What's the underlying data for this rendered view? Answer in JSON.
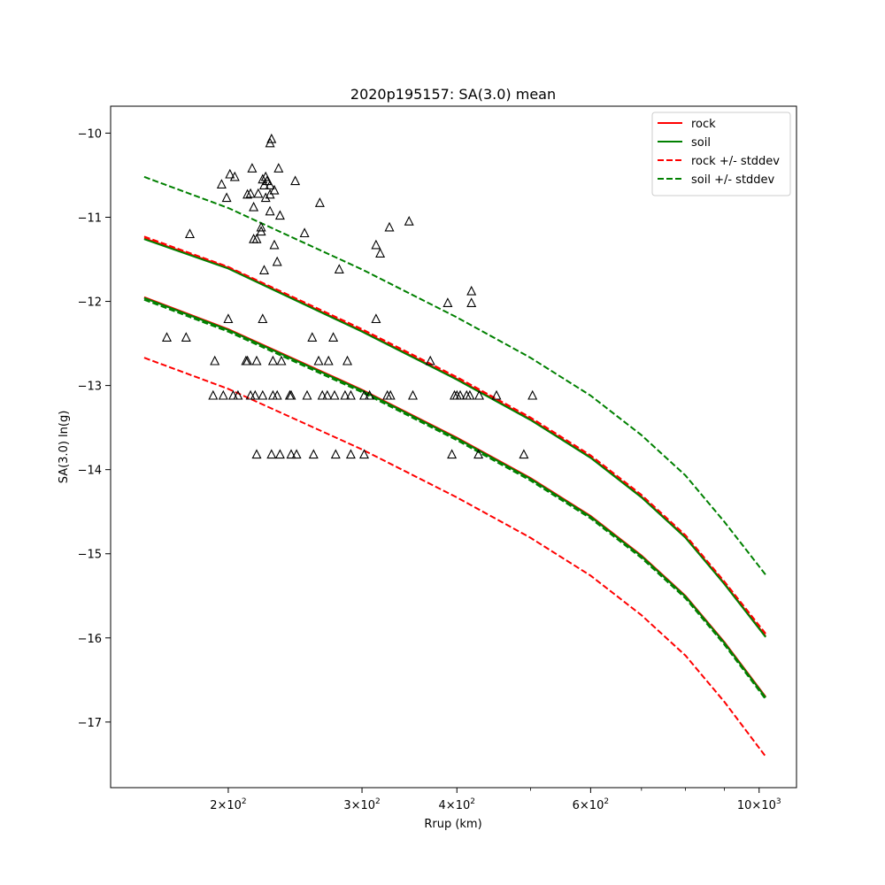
{
  "chart_data": {
    "type": "line",
    "title": "2020p195157: SA(3.0) mean",
    "xlabel": "Rrup (km)",
    "ylabel": "SA(3.0) ln(g)",
    "xscale": "log",
    "xlim": [
      140,
      1120
    ],
    "ylim": [
      -17.78,
      -9.68
    ],
    "grid": false,
    "legend_position": "top-right",
    "x_ticks": [
      {
        "value": 200,
        "base": "2",
        "exp": "2"
      },
      {
        "value": 300,
        "base": "3",
        "exp": "2"
      },
      {
        "value": 400,
        "base": "4",
        "exp": "2"
      },
      {
        "value": 600,
        "base": "6",
        "exp": "2"
      },
      {
        "value": 1000,
        "base": "10",
        "exp": "3"
      }
    ],
    "x_minor_ticks": [
      500,
      700,
      800,
      900
    ],
    "y_ticks": [
      {
        "value": -10,
        "label": "−10"
      },
      {
        "value": -11,
        "label": "−11"
      },
      {
        "value": -12,
        "label": "−12"
      },
      {
        "value": -13,
        "label": "−13"
      },
      {
        "value": -14,
        "label": "−14"
      },
      {
        "value": -15,
        "label": "−15"
      },
      {
        "value": -16,
        "label": "−16"
      },
      {
        "value": -17,
        "label": "−17"
      }
    ],
    "series": [
      {
        "name": "rock",
        "color": "#ff0000",
        "dash": "solid",
        "in_legend": true,
        "x": [
          155,
          200,
          300,
          400,
          500,
          600,
          700,
          800,
          900,
          1020
        ],
        "y": [
          -11.95,
          -12.33,
          -13.05,
          -13.62,
          -14.1,
          -14.55,
          -15.02,
          -15.5,
          -16.05,
          -16.7
        ]
      },
      {
        "name": "",
        "color": "#ff0000",
        "dash": "solid",
        "in_legend": false,
        "x": [
          155,
          200,
          300,
          400,
          500,
          600,
          700,
          800,
          900,
          1020
        ],
        "y": [
          -11.25,
          -11.6,
          -12.35,
          -12.92,
          -13.4,
          -13.85,
          -14.32,
          -14.8,
          -15.35,
          -15.98
        ]
      },
      {
        "name": "soil",
        "color": "#008000",
        "dash": "solid",
        "in_legend": true,
        "x": [
          155,
          200,
          300,
          400,
          500,
          600,
          700,
          800,
          900,
          1020
        ],
        "y": [
          -11.26,
          -11.61,
          -12.36,
          -12.93,
          -13.41,
          -13.86,
          -14.33,
          -14.81,
          -15.36,
          -15.99
        ]
      },
      {
        "name": "",
        "color": "#008000",
        "dash": "solid",
        "in_legend": false,
        "x": [
          155,
          200,
          300,
          400,
          500,
          600,
          700,
          800,
          900,
          1020
        ],
        "y": [
          -11.96,
          -12.34,
          -13.06,
          -13.63,
          -14.11,
          -14.56,
          -15.03,
          -15.51,
          -16.06,
          -16.71
        ]
      },
      {
        "name": "rock +/- stddev",
        "color": "#ff0000",
        "dash": "dashed",
        "in_legend": true,
        "x": [
          155,
          200,
          300,
          400,
          500,
          600,
          700,
          800,
          900,
          1020
        ],
        "y": [
          -12.67,
          -13.04,
          -13.76,
          -14.33,
          -14.81,
          -15.26,
          -15.73,
          -16.21,
          -16.76,
          -17.41
        ]
      },
      {
        "name": "",
        "color": "#ff0000",
        "dash": "dashed",
        "in_legend": false,
        "x": [
          155,
          200,
          300,
          400,
          500,
          600,
          700,
          800,
          900,
          1020
        ],
        "y": [
          -11.23,
          -11.59,
          -12.33,
          -12.9,
          -13.38,
          -13.83,
          -14.3,
          -14.78,
          -15.33,
          -15.95
        ]
      },
      {
        "name": "soil +/- stddev",
        "color": "#008000",
        "dash": "dashed",
        "in_legend": true,
        "x": [
          155,
          200,
          300,
          400,
          500,
          600,
          700,
          800,
          900,
          1020
        ],
        "y": [
          -10.52,
          -10.89,
          -11.62,
          -12.19,
          -12.67,
          -13.12,
          -13.59,
          -14.07,
          -14.62,
          -15.25
        ]
      },
      {
        "name": "",
        "color": "#008000",
        "dash": "dashed",
        "in_legend": false,
        "x": [
          155,
          200,
          300,
          400,
          500,
          600,
          700,
          800,
          900,
          1020
        ],
        "y": [
          -11.98,
          -12.36,
          -13.08,
          -13.65,
          -14.13,
          -14.58,
          -15.05,
          -15.53,
          -16.08,
          -16.73
        ]
      }
    ],
    "observations": {
      "marker": "triangle",
      "x": [
        228,
        227,
        224,
        215,
        225,
        223,
        222,
        233,
        227,
        204,
        196,
        201,
        219,
        230,
        214,
        216,
        227,
        245,
        227,
        234,
        216,
        199,
        221,
        224,
        221,
        178,
        218,
        264,
        252,
        212,
        230,
        317,
        313,
        326,
        346,
        280,
        418,
        389,
        418,
        223,
        232,
        166,
        176,
        212,
        211,
        222,
        235,
        218,
        229,
        258,
        263,
        271,
        275,
        287,
        313,
        369,
        192,
        191,
        197,
        203,
        206,
        214,
        217,
        222,
        229,
        232,
        241,
        242,
        254,
        266,
        270,
        276,
        285,
        290,
        302,
        307,
        324,
        327,
        350,
        397,
        400,
        404,
        412,
        416,
        428,
        451,
        503,
        218,
        228,
        234,
        242,
        246,
        259,
        277,
        290,
        302,
        394,
        427,
        490,
        200
      ],
      "y": [
        -10.07,
        -10.12,
        -10.52,
        -10.42,
        -10.57,
        -10.62,
        -10.55,
        -10.42,
        -10.62,
        -10.52,
        -10.61,
        -10.49,
        -10.72,
        -10.68,
        -10.72,
        -10.88,
        -10.73,
        -10.57,
        -10.93,
        -10.98,
        -11.26,
        -10.77,
        -11.12,
        -10.77,
        -11.17,
        -11.2,
        -11.26,
        -10.83,
        -11.19,
        -10.73,
        -11.33,
        -11.43,
        -11.33,
        -11.12,
        -11.05,
        -11.62,
        -11.88,
        -12.02,
        -12.02,
        -11.63,
        -11.53,
        -12.43,
        -12.43,
        -12.71,
        -12.71,
        -12.21,
        -12.71,
        -12.71,
        -12.71,
        -12.43,
        -12.71,
        -12.71,
        -12.43,
        -12.71,
        -12.21,
        -12.71,
        -12.71,
        -13.12,
        -13.12,
        -13.12,
        -13.12,
        -13.12,
        -13.12,
        -13.12,
        -13.12,
        -13.12,
        -13.12,
        -13.12,
        -13.12,
        -13.12,
        -13.12,
        -13.12,
        -13.12,
        -13.12,
        -13.12,
        -13.12,
        -13.12,
        -13.12,
        -13.12,
        -13.12,
        -13.12,
        -13.12,
        -13.12,
        -13.12,
        -13.12,
        -13.12,
        -13.12,
        -13.82,
        -13.82,
        -13.82,
        -13.82,
        -13.82,
        -13.82,
        -13.82,
        -13.82,
        -13.82,
        -13.82,
        -13.82,
        -13.82,
        -12.21
      ]
    }
  }
}
